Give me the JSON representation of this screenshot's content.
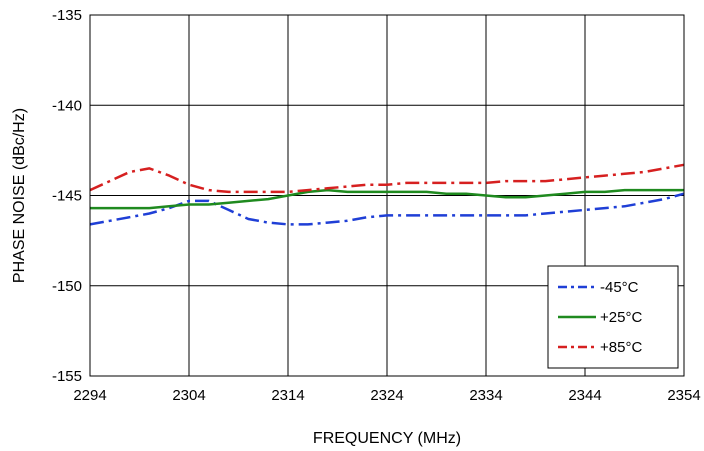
{
  "chart_data": {
    "type": "line",
    "title": "",
    "xlabel": "FREQUENCY (MHz)",
    "ylabel": "PHASE NOISE  (dBc/Hz)",
    "xlim": [
      2294,
      2354
    ],
    "ylim": [
      -155,
      -135
    ],
    "x_ticks": [
      2294,
      2304,
      2314,
      2324,
      2334,
      2344,
      2354
    ],
    "y_ticks": [
      -155,
      -150,
      -145,
      -140,
      -135
    ],
    "x_tick_labels": [
      "2294",
      "2304",
      "2314",
      "2324",
      "2334",
      "2344",
      "2354"
    ],
    "y_tick_labels": [
      "-155",
      "-150",
      "-145",
      "-140",
      "-135"
    ],
    "grid": true,
    "legend_position": "bottom-right",
    "series": [
      {
        "name": "-45°C",
        "color": "#1f3fd6",
        "style": "dash-dot",
        "x": [
          2294,
          2296,
          2298,
          2300,
          2302,
          2304,
          2306,
          2308,
          2310,
          2312,
          2314,
          2316,
          2318,
          2320,
          2322,
          2324,
          2326,
          2328,
          2330,
          2332,
          2334,
          2336,
          2338,
          2340,
          2342,
          2344,
          2346,
          2348,
          2350,
          2352,
          2354
        ],
        "y": [
          -146.6,
          -146.4,
          -146.2,
          -146.0,
          -145.7,
          -145.3,
          -145.3,
          -145.8,
          -146.3,
          -146.5,
          -146.6,
          -146.6,
          -146.5,
          -146.4,
          -146.2,
          -146.1,
          -146.1,
          -146.1,
          -146.1,
          -146.1,
          -146.1,
          -146.1,
          -146.1,
          -146.0,
          -145.9,
          -145.8,
          -145.7,
          -145.6,
          -145.4,
          -145.2,
          -144.9
        ]
      },
      {
        "name": "+25°C",
        "color": "#1f8a1f",
        "style": "solid",
        "x": [
          2294,
          2296,
          2298,
          2300,
          2302,
          2304,
          2306,
          2308,
          2310,
          2312,
          2314,
          2316,
          2318,
          2320,
          2322,
          2324,
          2326,
          2328,
          2330,
          2332,
          2334,
          2336,
          2338,
          2340,
          2342,
          2344,
          2346,
          2348,
          2350,
          2352,
          2354
        ],
        "y": [
          -145.7,
          -145.7,
          -145.7,
          -145.7,
          -145.6,
          -145.5,
          -145.5,
          -145.4,
          -145.3,
          -145.2,
          -145.0,
          -144.8,
          -144.7,
          -144.8,
          -144.8,
          -144.8,
          -144.8,
          -144.8,
          -144.9,
          -144.9,
          -145.0,
          -145.1,
          -145.1,
          -145.0,
          -144.9,
          -144.8,
          -144.8,
          -144.7,
          -144.7,
          -144.7,
          -144.7
        ]
      },
      {
        "name": "+85°C",
        "color": "#d62020",
        "style": "dash-dot",
        "x": [
          2294,
          2296,
          2298,
          2300,
          2302,
          2304,
          2306,
          2308,
          2310,
          2312,
          2314,
          2316,
          2318,
          2320,
          2322,
          2324,
          2326,
          2328,
          2330,
          2332,
          2334,
          2336,
          2338,
          2340,
          2342,
          2344,
          2346,
          2348,
          2350,
          2352,
          2354
        ],
        "y": [
          -144.7,
          -144.2,
          -143.7,
          -143.5,
          -143.9,
          -144.4,
          -144.7,
          -144.8,
          -144.8,
          -144.8,
          -144.8,
          -144.7,
          -144.6,
          -144.5,
          -144.4,
          -144.4,
          -144.3,
          -144.3,
          -144.3,
          -144.3,
          -144.3,
          -144.2,
          -144.2,
          -144.2,
          -144.1,
          -144.0,
          -143.9,
          -143.8,
          -143.7,
          -143.5,
          -143.3
        ]
      }
    ]
  }
}
